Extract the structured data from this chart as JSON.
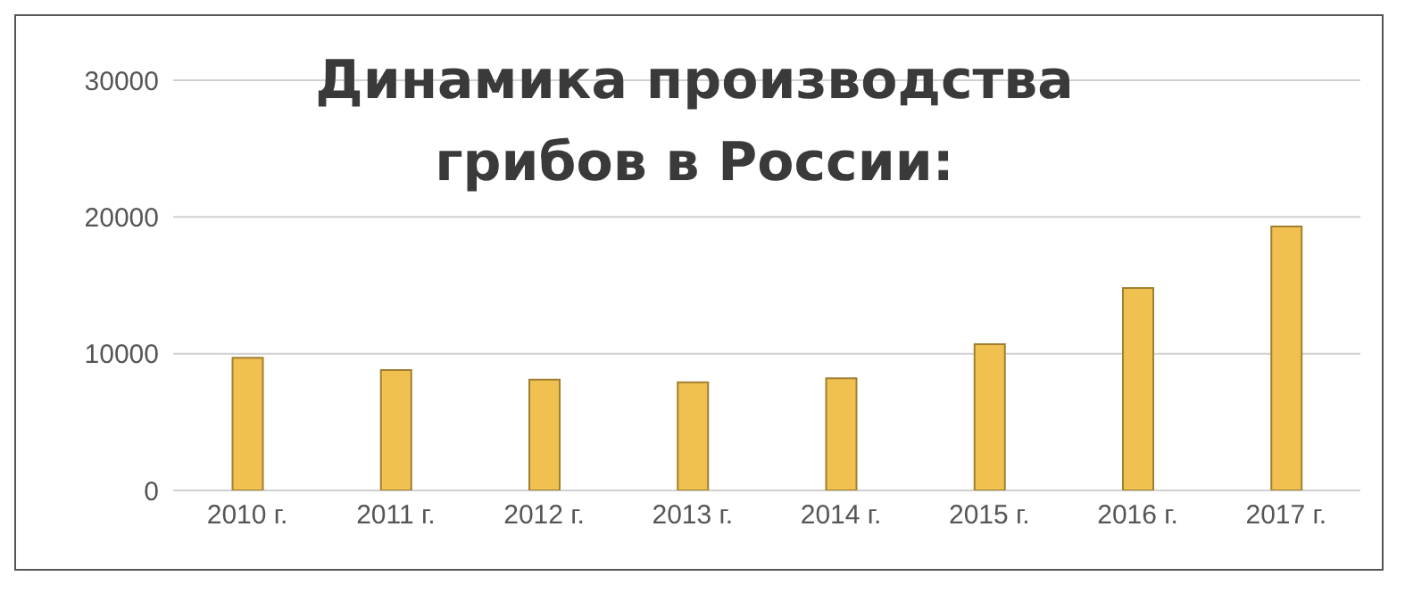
{
  "chart_data": {
    "type": "bar",
    "title": "Динамика производства грибов в России:",
    "categories": [
      "2010 г.",
      "2011 г.",
      "2012 г.",
      "2013 г.",
      "2014 г.",
      "2015 г.",
      "2016 г.",
      "2017 г."
    ],
    "values": [
      9700,
      8800,
      8100,
      7900,
      8200,
      10700,
      14800,
      19300
    ],
    "color": "#f0c050",
    "ylim": [
      0,
      30000
    ],
    "yticks": [
      0,
      10000,
      20000,
      30000
    ],
    "grid": "y"
  }
}
